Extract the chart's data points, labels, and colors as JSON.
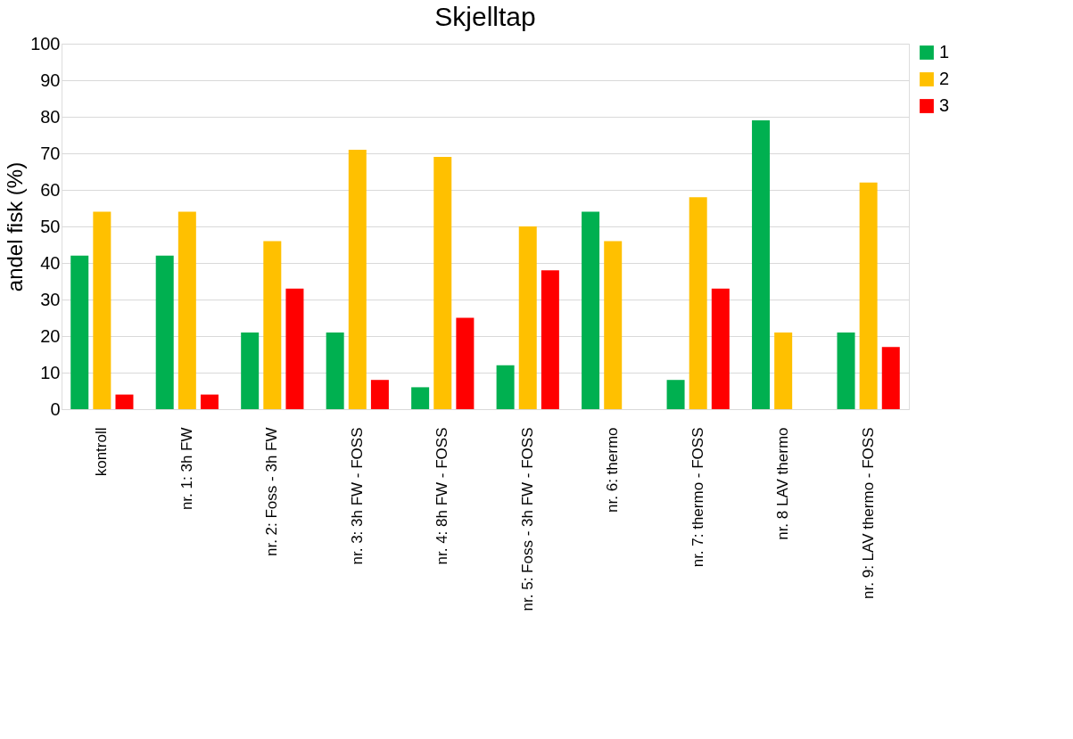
{
  "chart_data": {
    "type": "bar",
    "title": "Skjelltap",
    "ylabel": "andel fisk (%)",
    "categories": [
      "kontroll",
      "nr. 1:  3h FW",
      "nr. 2:  Foss - 3h FW",
      "nr. 3: 3h FW - FOSS",
      "nr. 4: 8h FW - FOSS",
      "nr. 5:  Foss - 3h FW - FOSS",
      "nr. 6:  thermo",
      "nr. 7:  thermo - FOSS",
      "nr. 8 LAV thermo",
      "nr. 9: LAV thermo - FOSS"
    ],
    "series": [
      {
        "name": "1",
        "color": "#00b050",
        "values": [
          42,
          42,
          21,
          21,
          6,
          12,
          54,
          8,
          79,
          21
        ]
      },
      {
        "name": "2",
        "color": "#ffc000",
        "values": [
          54,
          54,
          46,
          71,
          69,
          50,
          46,
          58,
          21,
          62
        ]
      },
      {
        "name": "3",
        "color": "#ff0000",
        "values": [
          4,
          4,
          33,
          8,
          25,
          38,
          0,
          33,
          0,
          17
        ]
      }
    ],
    "ylim": [
      0,
      100
    ],
    "yticks": [
      0,
      10,
      20,
      30,
      40,
      50,
      60,
      70,
      80,
      90,
      100
    ],
    "grid": "y",
    "legend": "top right"
  }
}
